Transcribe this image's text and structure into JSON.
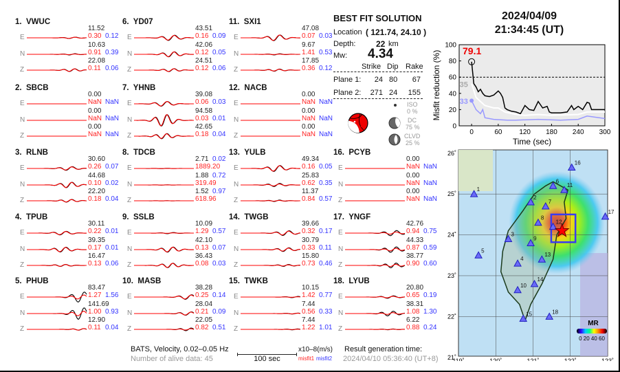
{
  "stations": [
    {
      "num": "1.",
      "name": "VWUC",
      "comps": [
        {
          "label": "E",
          "amp": "11.52",
          "misfit1": "0.30",
          "misfit2": "0.12"
        },
        {
          "label": "N",
          "amp": "10.63",
          "misfit1": "0.91",
          "misfit2": "0.39"
        },
        {
          "label": "Z",
          "amp": "22.08",
          "misfit1": "0.11",
          "misfit2": "0.06"
        }
      ]
    },
    {
      "num": "2.",
      "name": "SBCB",
      "comps": [
        {
          "label": "E",
          "amp": "0.00",
          "misfit1": "NaN",
          "misfit2": "NaN"
        },
        {
          "label": "N",
          "amp": "0.00",
          "misfit1": "NaN",
          "misfit2": "NaN"
        },
        {
          "label": "Z",
          "amp": "0.00",
          "misfit1": "NaN",
          "misfit2": "NaN"
        }
      ]
    },
    {
      "num": "3.",
      "name": "RLNB",
      "comps": [
        {
          "label": "E",
          "amp": "30.60",
          "misfit1": "0.26",
          "misfit2": "0.07"
        },
        {
          "label": "N",
          "amp": "44.68",
          "misfit1": "0.10",
          "misfit2": "0.02"
        },
        {
          "label": "Z",
          "amp": "22.20",
          "misfit1": "0.18",
          "misfit2": "0.04"
        }
      ]
    },
    {
      "num": "4.",
      "name": "TPUB",
      "comps": [
        {
          "label": "E",
          "amp": "30.11",
          "misfit1": "0.22",
          "misfit2": "0.01"
        },
        {
          "label": "N",
          "amp": "39.35",
          "misfit1": "0.17",
          "misfit2": "0.01"
        },
        {
          "label": "Z",
          "amp": "16.47",
          "misfit1": "0.13",
          "misfit2": "0.06"
        }
      ]
    },
    {
      "num": "5.",
      "name": "PHUB",
      "comps": [
        {
          "label": "E",
          "amp": "83.47",
          "misfit1": "1.27",
          "misfit2": "1.56"
        },
        {
          "label": "N",
          "amp": "141.69",
          "misfit1": "1.00",
          "misfit2": "0.93"
        },
        {
          "label": "Z",
          "amp": "12.90",
          "misfit1": "0.11",
          "misfit2": "0.04"
        }
      ]
    },
    {
      "num": "6.",
      "name": "YD07",
      "comps": [
        {
          "label": "E",
          "amp": "43.51",
          "misfit1": "0.16",
          "misfit2": "0.09"
        },
        {
          "label": "N",
          "amp": "42.06",
          "misfit1": "0.12",
          "misfit2": "0.05"
        },
        {
          "label": "Z",
          "amp": "24.51",
          "misfit1": "0.12",
          "misfit2": "0.06"
        }
      ]
    },
    {
      "num": "7.",
      "name": "YHNB",
      "comps": [
        {
          "label": "E",
          "amp": "39.08",
          "misfit1": "0.06",
          "misfit2": "0.03"
        },
        {
          "label": "N",
          "amp": "94.58",
          "misfit1": "0.03",
          "misfit2": "0.01"
        },
        {
          "label": "Z",
          "amp": "42.65",
          "misfit1": "0.18",
          "misfit2": "0.04"
        }
      ]
    },
    {
      "num": "8.",
      "name": "TDCB",
      "comps": [
        {
          "label": "E",
          "amp": "2.71",
          "misfit1": "1889.20",
          "misfit2": "0.02"
        },
        {
          "label": "N",
          "amp": "1.88",
          "misfit1": "319.49",
          "misfit2": "0.72"
        },
        {
          "label": "Z",
          "amp": "1.52",
          "misfit1": "618.96",
          "misfit2": "0.97"
        }
      ]
    },
    {
      "num": "9.",
      "name": "SSLB",
      "comps": [
        {
          "label": "E",
          "amp": "10.09",
          "misfit1": "1.29",
          "misfit2": "0.57"
        },
        {
          "label": "N",
          "amp": "42.10",
          "misfit1": "0.13",
          "misfit2": "0.07"
        },
        {
          "label": "Z",
          "amp": "36.43",
          "misfit1": "0.08",
          "misfit2": "0.03"
        }
      ]
    },
    {
      "num": "10.",
      "name": "MASB",
      "comps": [
        {
          "label": "E",
          "amp": "38.28",
          "misfit1": "0.25",
          "misfit2": "0.14"
        },
        {
          "label": "N",
          "amp": "28.04",
          "misfit1": "0.21",
          "misfit2": "0.09"
        },
        {
          "label": "Z",
          "amp": "22.05",
          "misfit1": "0.82",
          "misfit2": "0.51"
        }
      ]
    },
    {
      "num": "11.",
      "name": "SXI1",
      "comps": [
        {
          "label": "E",
          "amp": "47.08",
          "misfit1": "0.07",
          "misfit2": "0.03"
        },
        {
          "label": "N",
          "amp": "9.67",
          "misfit1": "1.41",
          "misfit2": "0.53"
        },
        {
          "label": "Z",
          "amp": "17.85",
          "misfit1": "0.36",
          "misfit2": "0.12"
        }
      ]
    },
    {
      "num": "12.",
      "name": "NACB",
      "comps": [
        {
          "label": "E",
          "amp": "0.00",
          "misfit1": "NaN",
          "misfit2": "NaN"
        },
        {
          "label": "N",
          "amp": "0.00",
          "misfit1": "NaN",
          "misfit2": "NaN"
        },
        {
          "label": "Z",
          "amp": "0.00",
          "misfit1": "NaN",
          "misfit2": "NaN"
        }
      ]
    },
    {
      "num": "13.",
      "name": "YULB",
      "comps": [
        {
          "label": "E",
          "amp": "49.34",
          "misfit1": "0.16",
          "misfit2": "0.05"
        },
        {
          "label": "N",
          "amp": "25.83",
          "misfit1": "0.62",
          "misfit2": "0.35"
        },
        {
          "label": "Z",
          "amp": "11.37",
          "misfit1": "0.84",
          "misfit2": "0.57"
        }
      ]
    },
    {
      "num": "14.",
      "name": "TWGB",
      "comps": [
        {
          "label": "E",
          "amp": "39.66",
          "misfit1": "0.32",
          "misfit2": "0.17"
        },
        {
          "label": "N",
          "amp": "30.79",
          "misfit1": "0.33",
          "misfit2": "0.11"
        },
        {
          "label": "Z",
          "amp": "15.80",
          "misfit1": "0.73",
          "misfit2": "0.46"
        }
      ]
    },
    {
      "num": "15.",
      "name": "TWKB",
      "comps": [
        {
          "label": "E",
          "amp": "10.15",
          "misfit1": "1.42",
          "misfit2": "0.77"
        },
        {
          "label": "N",
          "amp": "7.44",
          "misfit1": "0.56",
          "misfit2": "0.33"
        },
        {
          "label": "Z",
          "amp": "7.44",
          "misfit1": "1.22",
          "misfit2": "1.01"
        }
      ]
    },
    {
      "num": "16.",
      "name": "PCYB",
      "comps": [
        {
          "label": "E",
          "amp": "0.00",
          "misfit1": "NaN",
          "misfit2": "NaN"
        },
        {
          "label": "N",
          "amp": "0.00",
          "misfit1": "NaN",
          "misfit2": "NaN"
        },
        {
          "label": "Z",
          "amp": "0.00",
          "misfit1": "NaN",
          "misfit2": "NaN"
        }
      ]
    },
    {
      "num": "17.",
      "name": "YNGF",
      "comps": [
        {
          "label": "E",
          "amp": "42.76",
          "misfit1": "0.94",
          "misfit2": "0.75"
        },
        {
          "label": "N",
          "amp": "44.33",
          "misfit1": "0.87",
          "misfit2": "0.59"
        },
        {
          "label": "Z",
          "amp": "38.77",
          "misfit1": "0.90",
          "misfit2": "0.60"
        }
      ]
    },
    {
      "num": "18.",
      "name": "LYUB",
      "comps": [
        {
          "label": "E",
          "amp": "20.80",
          "misfit1": "0.65",
          "misfit2": "0.19"
        },
        {
          "label": "N",
          "amp": "38.31",
          "misfit1": "1.08",
          "misfit2": "1.30"
        },
        {
          "label": "Z",
          "amp": "6.22",
          "misfit1": "0.88",
          "misfit2": "0.24"
        }
      ]
    }
  ],
  "solution": {
    "title": "BEST FIT SOLUTION",
    "location_label": "Location",
    "location_value": "( 121.74,  24.10 )",
    "depth_label": "Depth:",
    "depth_value": "22",
    "depth_unit": "km",
    "mw_label": "Mw:",
    "mw_value": "4.34",
    "headers": [
      "Strike",
      "Dip",
      "Rake"
    ],
    "planes": [
      {
        "label": "Plane 1:",
        "strike": "24",
        "dip": "80",
        "rake": "67"
      },
      {
        "label": "Plane 2:",
        "strike": "271",
        "dip": "24",
        "rake": "155"
      }
    ],
    "iso": {
      "label": "ISO",
      "value": "0 %"
    },
    "dc": {
      "label": "DC",
      "value": "75 %"
    },
    "clvd": {
      "label": "CLVD",
      "value": "25 %"
    },
    "colors": {
      "compression": "#ee0000",
      "dilatation": "#ffffff"
    }
  },
  "event": {
    "date": "2024/04/09",
    "time": "21:34:45  (UT)"
  },
  "footer": {
    "source": "BATS, Velocity, 0.02–0.05 Hz",
    "alive": "Number of alive data: 45",
    "scale_label": "100 sec",
    "units": "x10–8(m/s)",
    "misfit1": "misfit1",
    "misfit2": "misfit2",
    "gen_label": "Result generation time:",
    "gen_time": "2024/04/10 05:36:40 (UT+8)"
  },
  "chart_data": {
    "type": "line",
    "ylabel": "Misfit reduction (%)",
    "xlabel": "Time (sec)",
    "xlim": [
      -28,
      300
    ],
    "ylim": [
      0,
      100
    ],
    "xticks": [
      "0",
      "60",
      "120",
      "180",
      "240",
      "300"
    ],
    "yticks": [
      "0",
      "20",
      "40",
      "60",
      "80",
      "100"
    ],
    "threshold": 60,
    "background": "#ebebeb",
    "annotations": {
      "best": "79.1",
      "white_start": "35",
      "blue_start": "33"
    },
    "series": [
      {
        "color": "#000000",
        "x": [
          0,
          5,
          10,
          15,
          20,
          25,
          30,
          40,
          50,
          60,
          65,
          70,
          75,
          80,
          90,
          100,
          110,
          120,
          130,
          140,
          150,
          160,
          170,
          175,
          180,
          200,
          215,
          225,
          230,
          240,
          250,
          260,
          265,
          270,
          300
        ],
        "y": [
          79,
          52,
          48,
          42,
          45,
          40,
          37,
          36,
          38,
          43,
          40,
          35,
          22,
          20,
          18,
          17,
          15,
          25,
          20,
          19,
          30,
          22,
          24,
          17,
          16,
          16,
          17,
          25,
          20,
          24,
          20,
          29,
          28,
          20,
          20
        ]
      },
      {
        "color": "#ffffff",
        "x": [
          0,
          10,
          20,
          30,
          50,
          60,
          75,
          100,
          120,
          150,
          180,
          240,
          260,
          300
        ],
        "y": [
          52,
          35,
          30,
          25,
          22,
          22,
          17,
          14,
          13,
          14,
          13,
          14,
          17,
          17
        ]
      },
      {
        "color": "#9999ff",
        "x": [
          0,
          10,
          20,
          25,
          30,
          50,
          80,
          100,
          150,
          200,
          240,
          260,
          300
        ],
        "y": [
          31,
          20,
          15,
          20,
          10,
          8,
          7,
          7,
          8,
          7,
          8,
          12,
          9
        ]
      }
    ]
  },
  "map": {
    "lon_ticks": [
      "119˚",
      "120˚",
      "121˚",
      "122˚",
      "123˚"
    ],
    "lat_ticks": [
      "21˚",
      "22˚",
      "23˚",
      "24˚",
      "25˚",
      "26˚"
    ],
    "colorbar_label": "MR",
    "colorbar_ticks": "0 20 40 60",
    "epicenter": {
      "lon": 121.74,
      "lat": 24.1
    },
    "stations": [
      {
        "id": "1",
        "lon": 119.38,
        "lat": 25.0
      },
      {
        "id": "2",
        "lon": 120.9,
        "lat": 24.8
      },
      {
        "id": "3",
        "lon": 120.3,
        "lat": 23.9
      },
      {
        "id": "4",
        "lon": 120.55,
        "lat": 23.3
      },
      {
        "id": "5",
        "lon": 119.5,
        "lat": 23.5
      },
      {
        "id": "6",
        "lon": 121.5,
        "lat": 25.2
      },
      {
        "id": "7",
        "lon": 121.3,
        "lat": 24.7
      },
      {
        "id": "8",
        "lon": 121.1,
        "lat": 24.3
      },
      {
        "id": "9",
        "lon": 120.9,
        "lat": 23.8
      },
      {
        "id": "10",
        "lon": 120.55,
        "lat": 22.65
      },
      {
        "id": "11",
        "lon": 121.8,
        "lat": 25.1
      },
      {
        "id": "12",
        "lon": 121.5,
        "lat": 24.2
      },
      {
        "id": "13",
        "lon": 121.2,
        "lat": 23.4
      },
      {
        "id": "14",
        "lon": 121.0,
        "lat": 22.8
      },
      {
        "id": "15",
        "lon": 120.7,
        "lat": 21.95
      },
      {
        "id": "16",
        "lon": 122.0,
        "lat": 25.65
      },
      {
        "id": "17",
        "lon": 122.9,
        "lat": 24.45
      },
      {
        "id": "18",
        "lon": 121.4,
        "lat": 22.0
      }
    ]
  }
}
